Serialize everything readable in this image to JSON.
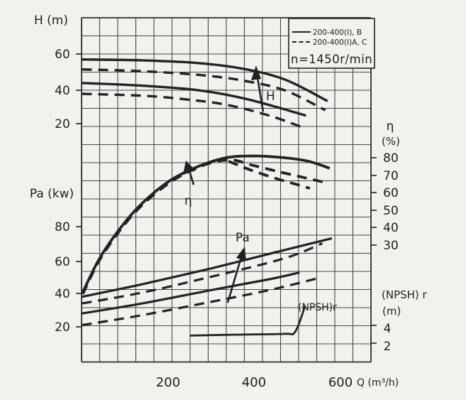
{
  "page": {
    "background": "#f2f1ed",
    "ink": "#222222",
    "grid_color": "#474747"
  },
  "axes": {
    "h": {
      "title": "H (m)",
      "ticks": [
        "60",
        "40",
        "20"
      ]
    },
    "pa": {
      "title": "Pa (kw)",
      "ticks": [
        "80",
        "60",
        "40",
        "20"
      ]
    },
    "eta": {
      "title": "η",
      "unit": "(%)",
      "ticks": [
        "80",
        "70",
        "60",
        "50",
        "40",
        "30"
      ]
    },
    "npsh": {
      "title": "(NPSH) r",
      "unit": "(m)",
      "ticks": [
        "4",
        "2"
      ]
    },
    "q": {
      "title": "Q (m³/h)",
      "ticks": [
        "200",
        "400",
        "600"
      ]
    }
  },
  "legend": {
    "solid_label": "200-400(I), B",
    "dashed_label": "200-400(I)A, C",
    "speed": "n=1450r/min"
  },
  "annotations": {
    "h_label": "H",
    "eta_label": "η",
    "pa_label": "Pa",
    "npsh_label": "(NPSH)r"
  },
  "chart_data": {
    "type": "line",
    "title": "Pump performance curves 200-400, n=1450 r/min",
    "xlabel": "Q (m³/h)",
    "x_range": [
      0,
      650
    ],
    "grid": true,
    "legend_position": "top-right",
    "axes_info": {
      "H": {
        "label": "H (m)",
        "ticks": [
          60,
          40,
          20
        ]
      },
      "Pa": {
        "label": "Pa (kw)",
        "ticks": [
          80,
          60,
          40,
          20
        ]
      },
      "eta": {
        "label": "η (%)",
        "ticks": [
          80,
          70,
          60,
          50,
          40,
          30
        ]
      },
      "npsh": {
        "label": "(NPSH) r (m)",
        "ticks": [
          4,
          2
        ]
      }
    },
    "series": [
      {
        "name": "H-solid-upper-B",
        "legend": "200-400(I), B",
        "axis": "H",
        "style": "solid",
        "points": [
          [
            0,
            57
          ],
          [
            140,
            56.5
          ],
          [
            270,
            55
          ],
          [
            370,
            52
          ],
          [
            470,
            46
          ],
          [
            570,
            34
          ]
        ]
      },
      {
        "name": "H-dashed-upper-AC",
        "legend": "200-400(I)A, C",
        "axis": "H",
        "style": "dashed",
        "points": [
          [
            0,
            51.5
          ],
          [
            140,
            50.5
          ],
          [
            270,
            48.5
          ],
          [
            370,
            45.5
          ],
          [
            470,
            40
          ],
          [
            565,
            29
          ]
        ]
      },
      {
        "name": "H-solid-lower",
        "legend": "200-400(I), B",
        "axis": "H",
        "style": "solid",
        "points": [
          [
            0,
            44
          ],
          [
            140,
            42.5
          ],
          [
            270,
            40
          ],
          [
            385,
            35
          ],
          [
            520,
            26
          ]
        ]
      },
      {
        "name": "H-dashed-lower",
        "legend": "200-400(I)A, C",
        "axis": "H",
        "style": "dashed",
        "points": [
          [
            0,
            38
          ],
          [
            140,
            37
          ],
          [
            240,
            35
          ],
          [
            335,
            32
          ],
          [
            435,
            26
          ],
          [
            518,
            19
          ]
        ]
      },
      {
        "name": "eta-solid",
        "legend": "200-400(I), B",
        "axis": "eta",
        "style": "solid",
        "points": [
          [
            2,
            3
          ],
          [
            40,
            22
          ],
          [
            90,
            40
          ],
          [
            140,
            54
          ],
          [
            205,
            67
          ],
          [
            270,
            75
          ],
          [
            335,
            80
          ],
          [
            400,
            81
          ],
          [
            470,
            80
          ],
          [
            525,
            78
          ],
          [
            575,
            74
          ]
        ]
      },
      {
        "name": "eta-dashed",
        "legend": "200-400(I)A, C",
        "axis": "eta",
        "style": "dashed",
        "points": [
          [
            2,
            2
          ],
          [
            40,
            21
          ],
          [
            90,
            39
          ],
          [
            140,
            53
          ],
          [
            205,
            66
          ],
          [
            265,
            74
          ],
          [
            315,
            78
          ],
          [
            355,
            78.5
          ],
          [
            391,
            76
          ],
          [
            457,
            72
          ],
          [
            518,
            68.5
          ],
          [
            562,
            66
          ]
        ]
      },
      {
        "name": "eta-dashed-2",
        "legend": "200-400(I)A, C",
        "axis": "eta",
        "style": "dashed",
        "points": [
          [
            340,
            78
          ],
          [
            391,
            73
          ],
          [
            452,
            68
          ],
          [
            501,
            64.5
          ],
          [
            529,
            62.5
          ]
        ]
      },
      {
        "name": "Pa-solid-upper",
        "legend": "200-400(I), B",
        "axis": "Pa",
        "style": "solid",
        "points": [
          [
            0,
            38
          ],
          [
            140,
            45.5
          ],
          [
            300,
            55
          ],
          [
            470,
            66
          ],
          [
            580,
            73
          ]
        ]
      },
      {
        "name": "Pa-dashed-upper",
        "legend": "200-400(I)A, C",
        "axis": "Pa",
        "style": "dashed",
        "points": [
          [
            0,
            34
          ],
          [
            140,
            40.5
          ],
          [
            300,
            50
          ],
          [
            470,
            61
          ],
          [
            558,
            70
          ]
        ]
      },
      {
        "name": "Pa-solid-lower",
        "legend": "200-400(I), B",
        "axis": "Pa",
        "style": "solid",
        "points": [
          [
            0,
            28
          ],
          [
            140,
            34
          ],
          [
            300,
            42
          ],
          [
            435,
            48.5
          ],
          [
            505,
            52.5
          ]
        ]
      },
      {
        "name": "Pa-dashed-lower",
        "legend": "200-400(I)A, C",
        "axis": "Pa",
        "style": "dashed",
        "points": [
          [
            0,
            21
          ],
          [
            140,
            27
          ],
          [
            300,
            35
          ],
          [
            435,
            42
          ],
          [
            546,
            49
          ]
        ]
      },
      {
        "name": "NPSHr",
        "legend": "(NPSH)r",
        "axis": "npsh",
        "style": "solid",
        "points": [
          [
            250,
            2.85
          ],
          [
            350,
            2.95
          ],
          [
            470,
            3.05
          ],
          [
            495,
            3.3
          ],
          [
            518,
            6.2
          ]
        ]
      }
    ]
  }
}
